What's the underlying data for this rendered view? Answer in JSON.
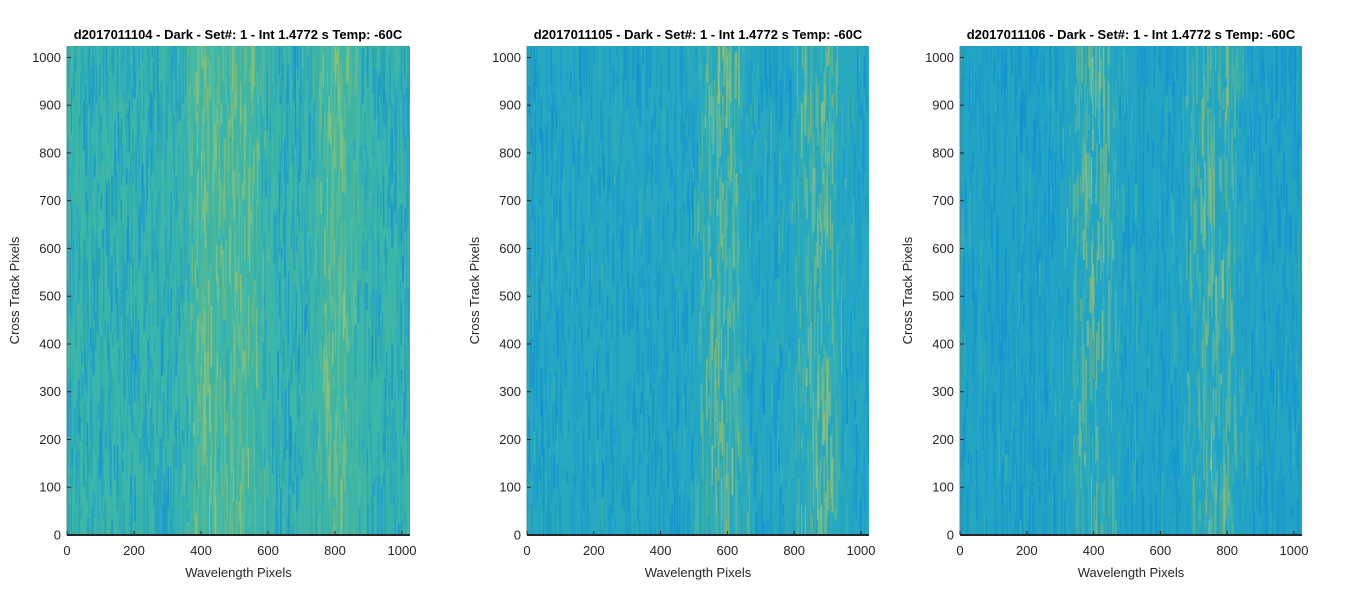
{
  "chart_data": [
    {
      "type": "heatmap",
      "title": "d2017011104 - Dark - Set#: 1 - Int 1.4772 s Temp: -60C",
      "xlabel": "Wavelength Pixels",
      "ylabel": "Cross Track Pixels",
      "xlim": [
        0,
        1024
      ],
      "ylim": [
        0,
        1024
      ],
      "xticks": [
        0,
        200,
        400,
        600,
        800,
        1000
      ],
      "yticks": [
        0,
        100,
        200,
        300,
        400,
        500,
        600,
        700,
        800,
        900,
        1000
      ],
      "colormap": "parula",
      "base_color": "#3db6a8",
      "high_band_centers": [
        420,
        520,
        800
      ],
      "grid": false
    },
    {
      "type": "heatmap",
      "title": "d2017011105 - Dark - Set#: 1 - Int 1.4772 s Temp: -60C",
      "xlabel": "Wavelength Pixels",
      "ylabel": "Cross Track Pixels",
      "xlim": [
        0,
        1024
      ],
      "ylim": [
        0,
        1024
      ],
      "xticks": [
        0,
        200,
        400,
        600,
        800,
        1000
      ],
      "yticks": [
        0,
        100,
        200,
        300,
        400,
        500,
        600,
        700,
        800,
        900,
        1000
      ],
      "colormap": "parula",
      "base_color": "#26a8c0",
      "high_band_centers": [
        580,
        870
      ],
      "grid": false
    },
    {
      "type": "heatmap",
      "title": "d2017011106 - Dark - Set#: 1 - Int 1.4772 s Temp: -60C",
      "xlabel": "Wavelength Pixels",
      "ylabel": "Cross Track Pixels",
      "xlim": [
        0,
        1024
      ],
      "ylim": [
        0,
        1024
      ],
      "xticks": [
        0,
        200,
        400,
        600,
        800,
        1000
      ],
      "yticks": [
        0,
        100,
        200,
        300,
        400,
        500,
        600,
        700,
        800,
        900,
        1000
      ],
      "colormap": "parula",
      "base_color": "#22a4c4",
      "high_band_centers": [
        400,
        760
      ],
      "grid": false
    }
  ]
}
